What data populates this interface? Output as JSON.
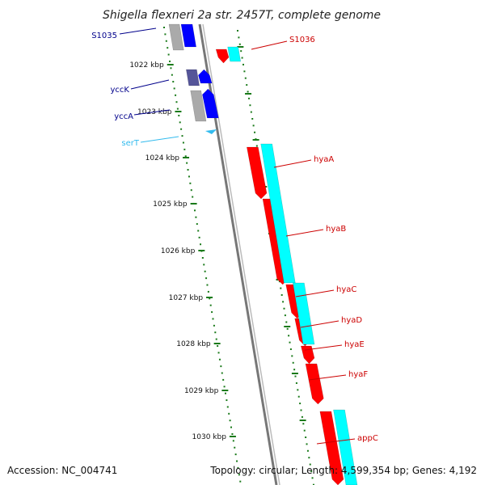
{
  "title": "Shigella flexneri 2a str. 2457T, complete genome",
  "footer": {
    "accession": "Accession: NC_004741",
    "topology": "Topology: circular; Length: 4,599,354 bp; Genes: 4,192"
  },
  "ruler": [
    "1022 kbp",
    "1023 kbp",
    "1024 kbp",
    "1025 kbp",
    "1026 kbp",
    "1027 kbp",
    "1028 kbp",
    "1029 kbp",
    "1030 kbp"
  ],
  "colors": {
    "forward_cds": "#ff0000",
    "forward_orf": "#00ffff",
    "reverse_cds": "#0000ff",
    "reverse_orf": "#aaaaaa",
    "trna": "#33bbee",
    "ticks": "#1a7a1a",
    "backbone": "#888888",
    "reverse_label": "#00008b",
    "forward_label": "#cc0000"
  },
  "reverse_genes": [
    {
      "name": "S1035",
      "color": "blue"
    },
    {
      "name": "yccK",
      "color": "blue"
    },
    {
      "name": "yccA",
      "color": "blue"
    },
    {
      "name": "serT",
      "color": "cyan"
    }
  ],
  "forward_genes": [
    {
      "name": "S1036"
    },
    {
      "name": "hyaA"
    },
    {
      "name": "hyaB"
    },
    {
      "name": "hyaC"
    },
    {
      "name": "hyaD"
    },
    {
      "name": "hyaE"
    },
    {
      "name": "hyaF"
    },
    {
      "name": "appC"
    }
  ]
}
